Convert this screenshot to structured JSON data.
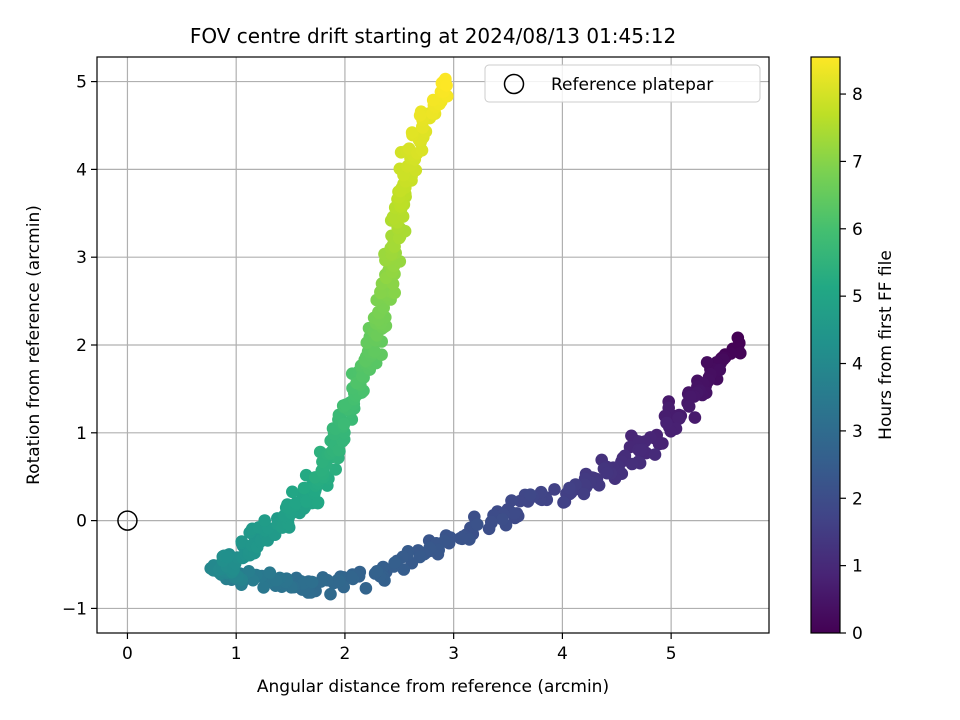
{
  "chart_data": {
    "type": "scatter",
    "title": "FOV centre drift starting at 2024/08/13 01:45:12",
    "xlabel": "Angular distance from reference (arcmin)",
    "ylabel": "Rotation from reference (arcmin)",
    "xlim": [
      -0.28,
      5.9
    ],
    "ylim": [
      -1.28,
      5.28
    ],
    "xticks": [
      0,
      1,
      2,
      3,
      4,
      5
    ],
    "yticks": [
      -1,
      0,
      1,
      2,
      3,
      4,
      5
    ],
    "grid": true,
    "legend": {
      "position": "top-right",
      "entries": [
        "Reference platepar"
      ]
    },
    "reference_point": {
      "x": 0,
      "y": 0
    },
    "colorbar": {
      "label": "Hours from first FF file",
      "range": [
        0,
        8.55
      ],
      "ticks": [
        0,
        1,
        2,
        3,
        4,
        5,
        6,
        7,
        8
      ],
      "colormap": "viridis"
    },
    "path_anchors": [
      {
        "t": 0.0,
        "x": 5.6,
        "y": 2.0
      },
      {
        "t": 0.4,
        "x": 5.3,
        "y": 1.55
      },
      {
        "t": 0.9,
        "x": 4.8,
        "y": 0.9
      },
      {
        "t": 1.4,
        "x": 4.3,
        "y": 0.4
      },
      {
        "t": 1.8,
        "x": 3.7,
        "y": 0.25
      },
      {
        "t": 2.2,
        "x": 3.0,
        "y": -0.2
      },
      {
        "t": 2.6,
        "x": 2.3,
        "y": -0.6
      },
      {
        "t": 3.0,
        "x": 1.7,
        "y": -0.75
      },
      {
        "t": 3.5,
        "x": 1.1,
        "y": -0.65
      },
      {
        "t": 4.0,
        "x": 0.85,
        "y": -0.55
      },
      {
        "t": 4.4,
        "x": 1.1,
        "y": -0.3
      },
      {
        "t": 4.8,
        "x": 1.5,
        "y": 0.05
      },
      {
        "t": 5.3,
        "x": 1.8,
        "y": 0.5
      },
      {
        "t": 5.8,
        "x": 2.0,
        "y": 1.2
      },
      {
        "t": 6.3,
        "x": 2.2,
        "y": 1.8
      },
      {
        "t": 6.8,
        "x": 2.35,
        "y": 2.4
      },
      {
        "t": 7.3,
        "x": 2.45,
        "y": 3.1
      },
      {
        "t": 7.8,
        "x": 2.55,
        "y": 3.8
      },
      {
        "t": 8.2,
        "x": 2.7,
        "y": 4.5
      },
      {
        "t": 8.55,
        "x": 2.95,
        "y": 5.0
      }
    ],
    "colors": {
      "axis": "#000000",
      "grid": "#b0b0b0",
      "reference_marker": "#000000"
    }
  }
}
